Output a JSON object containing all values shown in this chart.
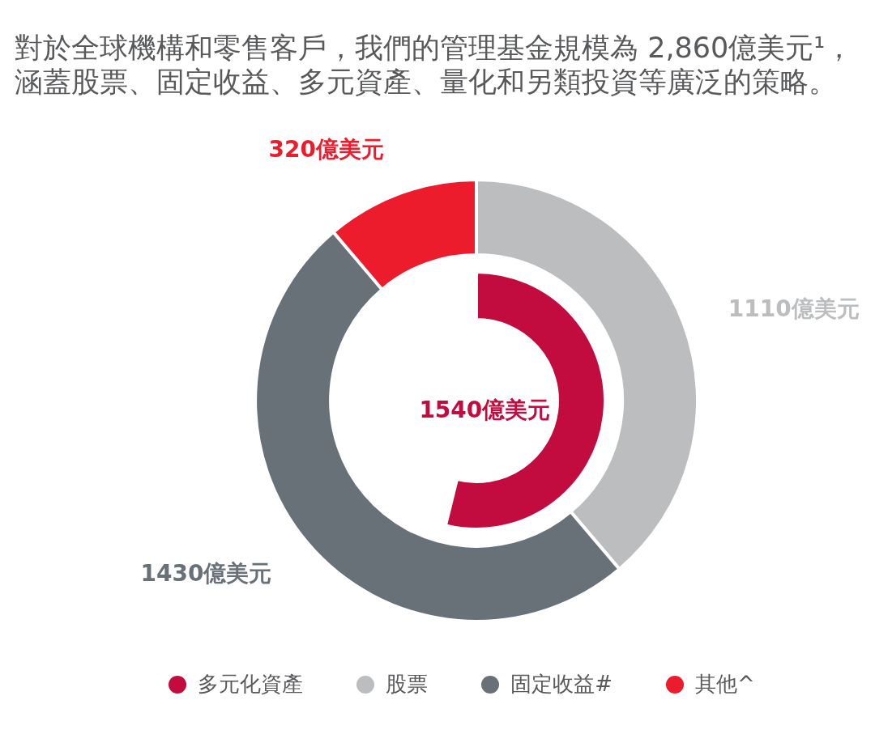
{
  "chart_data": {
    "type": "donut",
    "title": "對於全球機構和零售客戶，我們的管理基金規模為 2,860億美元¹，涵蓋股票、固定收益、多元資產、量化和另類投資等廣泛的策略。",
    "categories": [
      "多元化資產",
      "股票",
      "固定收益#",
      "其他^"
    ],
    "colors": [
      "#c20b3f",
      "#bbbdbf",
      "#687178",
      "#ec1c2d"
    ],
    "series": [
      {
        "values": [
          1540,
          null,
          null,
          null
        ],
        "value_labels": [
          "1540億美元",
          null,
          null,
          null
        ]
      },
      {
        "values": [
          null,
          1110,
          1430,
          320
        ],
        "value_labels": [
          null,
          "1110億美元",
          "1430億美元",
          "320億美元"
        ]
      }
    ],
    "legend": "bottom"
  }
}
